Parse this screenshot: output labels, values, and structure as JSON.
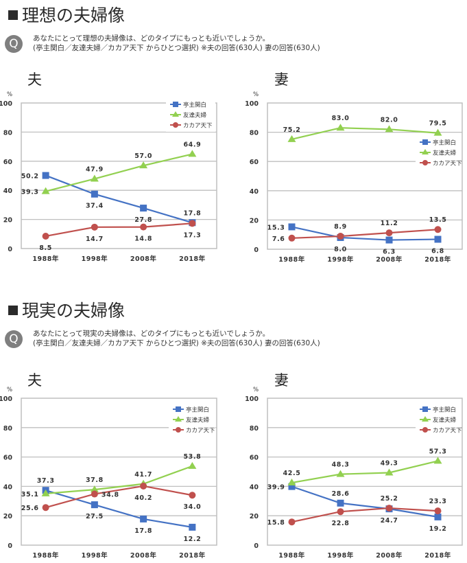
{
  "sections": [
    {
      "title": "理想の夫婦像",
      "q_badge": "Q",
      "question_line1": "あなたにとって理想の夫婦像は、どのタイプにもっとも近いでしょうか。",
      "question_line2": "(亭主関白／友達夫婦／カカア天下 からひとつ選択) ※夫の回答(630人) 妻の回答(630人)"
    },
    {
      "title": "現実の夫婦像",
      "q_badge": "Q",
      "question_line1": "あなたにとって現実の夫婦像は、どのタイプにもっとも近いでしょうか。",
      "question_line2": "(亭主関白／友達夫婦／カカア天下 からひとつ選択) ※夫の回答(630人) 妻の回答(630人)"
    }
  ],
  "colors": {
    "亭主関白": "#4472c4",
    "友達夫婦": "#92d050",
    "カカア天下": "#c0504d"
  },
  "chart_data": [
    {
      "type": "line",
      "title": "夫",
      "section": "理想の夫婦像",
      "ylabel": "%",
      "ylim": [
        0,
        100
      ],
      "yticks": [
        "0",
        "20",
        "40",
        "60",
        "80",
        "100"
      ],
      "categories": [
        "1988年",
        "1998年",
        "2008年",
        "2018年"
      ],
      "legend_position": "top-right",
      "grid": true,
      "series": [
        {
          "name": "亭主関白",
          "marker": "square",
          "values": [
            50.2,
            37.4,
            27.8,
            17.8
          ],
          "labels": [
            "50.2",
            "37.4",
            "27.8",
            "17.8"
          ]
        },
        {
          "name": "友達夫婦",
          "marker": "triangle",
          "values": [
            39.3,
            47.9,
            57.0,
            64.9
          ],
          "labels": [
            "39.3",
            "47.9",
            "57.0",
            "64.9"
          ]
        },
        {
          "name": "カカア天下",
          "marker": "circle",
          "values": [
            8.5,
            14.7,
            14.8,
            17.3
          ],
          "labels": [
            "8.5",
            "14.7",
            "14.8",
            "17.3"
          ]
        }
      ]
    },
    {
      "type": "line",
      "title": "妻",
      "section": "理想の夫婦像",
      "ylabel": "%",
      "ylim": [
        0,
        100
      ],
      "yticks": [
        "0",
        "20",
        "40",
        "60",
        "80",
        "100"
      ],
      "categories": [
        "1988年",
        "1998年",
        "2008年",
        "2018年"
      ],
      "legend_position": "center-right",
      "grid": true,
      "series": [
        {
          "name": "亭主関白",
          "marker": "square",
          "values": [
            15.3,
            8.0,
            6.3,
            6.8
          ],
          "labels": [
            "15.3",
            "8.0",
            "6.3",
            "6.8"
          ]
        },
        {
          "name": "友達夫婦",
          "marker": "triangle",
          "values": [
            75.2,
            83.0,
            82.0,
            79.5
          ],
          "labels": [
            "75.2",
            "83.0",
            "82.0",
            "79.5"
          ]
        },
        {
          "name": "カカア天下",
          "marker": "circle",
          "values": [
            7.6,
            8.9,
            11.2,
            13.5
          ],
          "labels": [
            "7.6",
            "8.9",
            "11.2",
            "13.5"
          ]
        }
      ]
    },
    {
      "type": "line",
      "title": "夫",
      "section": "現実の夫婦像",
      "ylabel": "%",
      "ylim": [
        0,
        100
      ],
      "yticks": [
        "0",
        "20",
        "40",
        "60",
        "80",
        "100"
      ],
      "categories": [
        "1988年",
        "1998年",
        "2008年",
        "2018年"
      ],
      "legend_position": "top-right",
      "grid": true,
      "series": [
        {
          "name": "亭主関白",
          "marker": "square",
          "values": [
            37.3,
            27.5,
            17.8,
            12.2
          ],
          "labels": [
            "37.3",
            "27.5",
            "17.8",
            "12.2"
          ]
        },
        {
          "name": "友達夫婦",
          "marker": "triangle",
          "values": [
            35.1,
            37.8,
            41.7,
            53.8
          ],
          "labels": [
            "35.1",
            "37.8",
            "41.7",
            "53.8"
          ]
        },
        {
          "name": "カカア天下",
          "marker": "circle",
          "values": [
            25.6,
            34.8,
            40.2,
            34.0
          ],
          "labels": [
            "25.6",
            "34.8",
            "40.2",
            "34.0"
          ]
        }
      ]
    },
    {
      "type": "line",
      "title": "妻",
      "section": "現実の夫婦像",
      "ylabel": "%",
      "ylim": [
        0,
        100
      ],
      "yticks": [
        "0",
        "20",
        "40",
        "60",
        "80",
        "100"
      ],
      "categories": [
        "1988年",
        "1998年",
        "2008年",
        "2018年"
      ],
      "legend_position": "top-right",
      "grid": true,
      "series": [
        {
          "name": "亭主関白",
          "marker": "square",
          "values": [
            39.9,
            28.6,
            24.7,
            19.2
          ],
          "labels": [
            "39.9",
            "28.6",
            "24.7",
            "19.2"
          ]
        },
        {
          "name": "友達夫婦",
          "marker": "triangle",
          "values": [
            42.5,
            48.3,
            49.3,
            57.3
          ],
          "labels": [
            "42.5",
            "48.3",
            "49.3",
            "57.3"
          ]
        },
        {
          "name": "カカア天下",
          "marker": "circle",
          "values": [
            15.8,
            22.8,
            25.2,
            23.3
          ],
          "labels": [
            "15.8",
            "22.8",
            "25.2",
            "23.3"
          ]
        }
      ]
    }
  ]
}
